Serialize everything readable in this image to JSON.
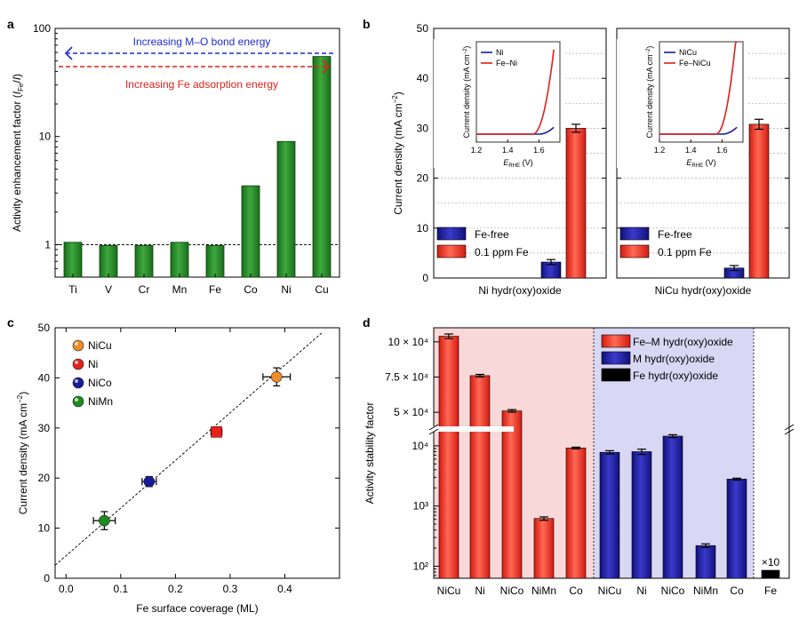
{
  "chart_data": [
    {
      "panel": "a",
      "type": "bar",
      "ylabel": "Activity enhancement factor (I_Fe/I)",
      "yscale": "log",
      "ylim": [
        0.5,
        100
      ],
      "yticks": [
        "1",
        "10",
        "100"
      ],
      "categories": [
        "Ti",
        "V",
        "Cr",
        "Mn",
        "Fe",
        "Co",
        "Ni",
        "Cu"
      ],
      "values": [
        1.05,
        0.98,
        0.98,
        1.05,
        0.98,
        3.5,
        9.0,
        55
      ],
      "reference_line": 1,
      "annotations": [
        "Increasing M–O bond energy",
        "Increasing Fe adsorption energy"
      ],
      "colors": {
        "bar": "#1a6e1a",
        "arrow_top": "#1f2bd1",
        "arrow_bottom": "#e0201a"
      }
    },
    {
      "panel": "b",
      "type": "bar",
      "ylabel": "Current density (mA cm−2)",
      "ylim": [
        0,
        50
      ],
      "yticks": [
        "0",
        "10",
        "20",
        "30",
        "40",
        "50"
      ],
      "groups": [
        {
          "label": "Ni hydr(oxy)oxide",
          "values": [
            3.2,
            30.0
          ],
          "errors": [
            0.5,
            0.8
          ]
        },
        {
          "label": "NiCu hydr(oxy)oxide",
          "values": [
            2.0,
            30.8
          ],
          "errors": [
            0.5,
            1.0
          ]
        }
      ],
      "series": [
        {
          "name": "Fe-free",
          "color": "#11117a"
        },
        {
          "name": "0.1 ppm Fe",
          "color": "#d41a10"
        }
      ],
      "insets": [
        {
          "xlabel": "E_RHE (V)",
          "ylabel": "Current density (mA cm−2)",
          "xticks": [
            "1.2",
            "1.4",
            "1.6"
          ],
          "legend": [
            "Ni",
            "Fe–Ni"
          ]
        },
        {
          "xlabel": "E_RHE (V)",
          "ylabel": "Current density (mA cm−2)",
          "xticks": [
            "1.2",
            "1.4",
            "1.6"
          ],
          "legend": [
            "NiCu",
            "Fe–NiCu"
          ]
        }
      ]
    },
    {
      "panel": "c",
      "type": "scatter",
      "xlabel": "Fe surface coverage (ML)",
      "ylabel": "Current density (mA cm−2)",
      "xlim": [
        -0.02,
        0.5
      ],
      "ylim": [
        0,
        50
      ],
      "xticks": [
        "0.0",
        "0.1",
        "0.2",
        "0.3",
        "0.4"
      ],
      "yticks": [
        "0",
        "10",
        "20",
        "30",
        "40",
        "50"
      ],
      "series": [
        {
          "name": "NiCu",
          "x": 0.385,
          "y": 40.2,
          "xerr": 0.025,
          "yerr": 1.8,
          "color": "#f08c28"
        },
        {
          "name": "Ni",
          "x": 0.275,
          "y": 29.2,
          "xerr": 0.01,
          "yerr": 0.6,
          "color": "#e6201a"
        },
        {
          "name": "NiCo",
          "x": 0.152,
          "y": 19.3,
          "xerr": 0.013,
          "yerr": 1.0,
          "color": "#1a1a9c"
        },
        {
          "name": "NiMn",
          "x": 0.07,
          "y": 11.5,
          "xerr": 0.02,
          "yerr": 1.8,
          "color": "#1f8a1f"
        }
      ],
      "fit_line": {
        "x": [
          -0.02,
          0.47
        ],
        "y": [
          2.6,
          49.2
        ]
      }
    },
    {
      "panel": "d",
      "type": "bar",
      "ylabel": "Activity stability factor",
      "yscale": "log with axis break",
      "yticks_lower": [
        "10²",
        "10³",
        "10⁴"
      ],
      "yticks_upper": [
        "5 × 10⁴",
        "7.5 × 10⁴",
        "10 × 10⁴"
      ],
      "categories": [
        "NiCu",
        "Ni",
        "NiCo",
        "NiMn",
        "Co",
        "NiCu",
        "Ni",
        "NiCo",
        "NiMn",
        "Co",
        "Fe"
      ],
      "series": [
        {
          "name": "Fe–M hydr(oxy)oxide",
          "color": "#d41a10",
          "values": [
            104000,
            76000,
            51000,
            620,
            9200,
            null,
            null,
            null,
            null,
            null,
            null
          ]
        },
        {
          "name": "M hydr(oxy)oxide",
          "color": "#11117a",
          "values": [
            null,
            null,
            null,
            null,
            null,
            7800,
            8000,
            14500,
            220,
            2800,
            null
          ]
        },
        {
          "name": "Fe hydr(oxy)oxide",
          "color": "#000000",
          "values": [
            null,
            null,
            null,
            null,
            null,
            null,
            null,
            null,
            null,
            null,
            7
          ]
        }
      ],
      "annotations": [
        "×10"
      ],
      "colors": {
        "bg_left": "#f8d8d8",
        "bg_right": "#d8d8f5"
      }
    }
  ],
  "panels": {
    "a": "a",
    "b": "b",
    "c": "c",
    "d": "d"
  }
}
